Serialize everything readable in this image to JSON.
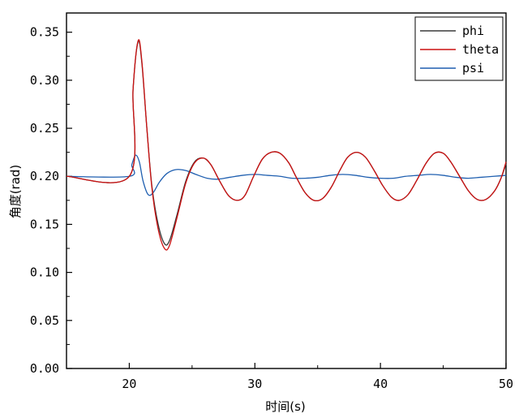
{
  "chart_data": {
    "type": "line",
    "xlabel": "时间(s)",
    "ylabel": "角度(rad)",
    "xlim": [
      15,
      50
    ],
    "ylim": [
      0,
      0.37
    ],
    "x_ticks": [
      20,
      30,
      40,
      50
    ],
    "y_ticks": [
      0.0,
      0.05,
      0.1,
      0.15,
      0.2,
      0.25,
      0.3,
      0.35
    ],
    "x_tick_labels": [
      "20",
      "30",
      "40",
      "50"
    ],
    "y_tick_labels": [
      "0.00",
      "0.05",
      "0.10",
      "0.15",
      "0.20",
      "0.25",
      "0.30",
      "0.35"
    ],
    "grid": false,
    "legend_position": "top-right",
    "series": [
      {
        "name": "phi",
        "color": "#3a3a3a",
        "x": [
          15,
          20,
          20.3,
          20.7,
          21.0,
          21.4,
          21.8,
          22.3,
          22.8,
          23.2,
          23.8,
          24.5,
          25.2,
          25.9,
          26.5,
          27.2,
          27.9,
          28.6,
          29.2,
          29.9,
          30.6,
          31.3,
          32.0,
          32.7,
          33.3,
          34.0,
          34.7,
          35.4,
          36.1,
          36.8,
          37.4,
          38.1,
          38.8,
          39.5,
          40.2,
          40.9,
          41.5,
          42.2,
          42.9,
          43.6,
          44.3,
          45.0,
          45.6,
          46.3,
          47.0,
          47.7,
          48.4,
          49.1,
          49.6,
          50
        ],
        "y": [
          0.2,
          0.2,
          0.29,
          0.34,
          0.318,
          0.25,
          0.19,
          0.15,
          0.13,
          0.133,
          0.16,
          0.195,
          0.215,
          0.219,
          0.212,
          0.195,
          0.18,
          0.175,
          0.18,
          0.2,
          0.218,
          0.225,
          0.224,
          0.214,
          0.199,
          0.183,
          0.175,
          0.177,
          0.189,
          0.207,
          0.22,
          0.225,
          0.22,
          0.206,
          0.19,
          0.178,
          0.175,
          0.181,
          0.196,
          0.213,
          0.224,
          0.224,
          0.215,
          0.2,
          0.185,
          0.176,
          0.176,
          0.185,
          0.198,
          0.213
        ]
      },
      {
        "name": "theta",
        "color": "#cc1111",
        "x": [
          15,
          20,
          20.3,
          20.7,
          21.0,
          21.4,
          21.8,
          22.3,
          22.8,
          23.2,
          23.8,
          24.5,
          25.2,
          25.9,
          26.5,
          27.2,
          27.9,
          28.6,
          29.2,
          29.9,
          30.6,
          31.3,
          32.0,
          32.7,
          33.3,
          34.0,
          34.7,
          35.4,
          36.1,
          36.8,
          37.4,
          38.1,
          38.8,
          39.5,
          40.2,
          40.9,
          41.5,
          42.2,
          42.9,
          43.6,
          44.3,
          45.0,
          45.6,
          46.3,
          47.0,
          47.7,
          48.4,
          49.1,
          49.6,
          50
        ],
        "y": [
          0.2,
          0.2,
          0.29,
          0.341,
          0.32,
          0.25,
          0.188,
          0.145,
          0.125,
          0.128,
          0.157,
          0.193,
          0.214,
          0.219,
          0.212,
          0.195,
          0.18,
          0.175,
          0.18,
          0.2,
          0.218,
          0.225,
          0.224,
          0.214,
          0.199,
          0.183,
          0.175,
          0.177,
          0.189,
          0.207,
          0.22,
          0.225,
          0.22,
          0.206,
          0.19,
          0.178,
          0.175,
          0.181,
          0.196,
          0.213,
          0.224,
          0.224,
          0.215,
          0.2,
          0.185,
          0.176,
          0.176,
          0.185,
          0.198,
          0.215
        ]
      },
      {
        "name": "psi",
        "color": "#1f5fb0",
        "x": [
          15,
          20,
          20.2,
          20.5,
          20.8,
          21.1,
          21.5,
          21.9,
          22.4,
          23.0,
          23.7,
          24.5,
          25.3,
          26.2,
          27.0,
          28.0,
          29.0,
          30.0,
          31.0,
          32.0,
          33.0,
          34.0,
          35.0,
          36.0,
          37.0,
          38.0,
          39.0,
          40.0,
          41.0,
          42.0,
          43.0,
          44.0,
          45.0,
          46.0,
          47.0,
          48.0,
          49.0,
          50
        ],
        "y": [
          0.2,
          0.2,
          0.212,
          0.222,
          0.215,
          0.195,
          0.181,
          0.183,
          0.194,
          0.203,
          0.207,
          0.206,
          0.202,
          0.198,
          0.197,
          0.199,
          0.201,
          0.202,
          0.201,
          0.2,
          0.198,
          0.198,
          0.199,
          0.201,
          0.202,
          0.201,
          0.199,
          0.198,
          0.198,
          0.2,
          0.201,
          0.202,
          0.201,
          0.199,
          0.198,
          0.199,
          0.2,
          0.201
        ]
      }
    ]
  }
}
